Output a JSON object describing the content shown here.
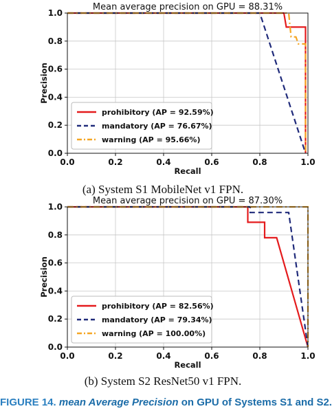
{
  "figure": {
    "caption_label": "FIGURE 14.",
    "caption_emph": "mean Average Precision",
    "caption_rest": " on GPU of Systems S1 and S2."
  },
  "chart_data": [
    {
      "type": "line",
      "title": "Mean average precision on GPU = 88.31%",
      "subcaption": "(a) System S1 MobileNet v1 FPN.",
      "xlabel": "Recall",
      "ylabel": "Precision",
      "xlim": [
        0,
        1
      ],
      "ylim": [
        0,
        1
      ],
      "xticks": [
        "0.0",
        "0.2",
        "0.4",
        "0.6",
        "0.8",
        "1.0"
      ],
      "yticks": [
        "0.0",
        "0.2",
        "0.4",
        "0.6",
        "0.8",
        "1.0"
      ],
      "grid": true,
      "legend_position": "lower-left",
      "series": [
        {
          "name": "prohibitory (AP = 92.59%)",
          "color": "#e41a1c",
          "style": "solid",
          "x": [
            0,
            0.9,
            0.91,
            0.97,
            0.98,
            0.99,
            0.99
          ],
          "y": [
            1,
            1,
            0.9,
            0.9,
            0.9,
            0.9,
            0
          ]
        },
        {
          "name": "mandatory (AP = 76.67%)",
          "color": "#1f2a7a",
          "style": "dashed",
          "x": [
            0,
            0.8,
            0.99
          ],
          "y": [
            1,
            1,
            0
          ]
        },
        {
          "name": "warning (AP = 95.66%)",
          "color": "#f5a623",
          "style": "dashdot",
          "x": [
            0,
            0.92,
            0.93,
            0.95,
            0.96,
            0.98,
            0.99,
            0.99
          ],
          "y": [
            1,
            1,
            0.83,
            0.83,
            0.78,
            0.78,
            0.78,
            0
          ]
        }
      ]
    },
    {
      "type": "line",
      "title": "Mean average precision on GPU = 87.30%",
      "subcaption": "(b) System S2 ResNet50 v1 FPN.",
      "xlabel": "Recall",
      "ylabel": "Precision",
      "xlim": [
        0,
        1
      ],
      "ylim": [
        0,
        1
      ],
      "xticks": [
        "0.0",
        "0.2",
        "0.4",
        "0.6",
        "0.8",
        "1.0"
      ],
      "yticks": [
        "0.0",
        "0.2",
        "0.4",
        "0.6",
        "0.8",
        "1.0"
      ],
      "grid": true,
      "legend_position": "lower-left",
      "series": [
        {
          "name": "prohibitory (AP = 82.56%)",
          "color": "#e41a1c",
          "style": "solid",
          "x": [
            0,
            0.75,
            0.75,
            0.82,
            0.82,
            0.85,
            0.87,
            1.0
          ],
          "y": [
            1,
            1,
            0.89,
            0.89,
            0.78,
            0.78,
            0.78,
            0
          ]
        },
        {
          "name": "mandatory (AP = 79.34%)",
          "color": "#1f2a7a",
          "style": "dashed",
          "x": [
            0,
            0.76,
            0.76,
            0.92,
            1.0
          ],
          "y": [
            1,
            1,
            0.96,
            0.96,
            0
          ]
        },
        {
          "name": "warning (AP = 100.00%)",
          "color": "#f5a623",
          "style": "dashdot",
          "x": [
            0,
            1.0,
            1.0
          ],
          "y": [
            1,
            1,
            0
          ]
        }
      ]
    }
  ]
}
